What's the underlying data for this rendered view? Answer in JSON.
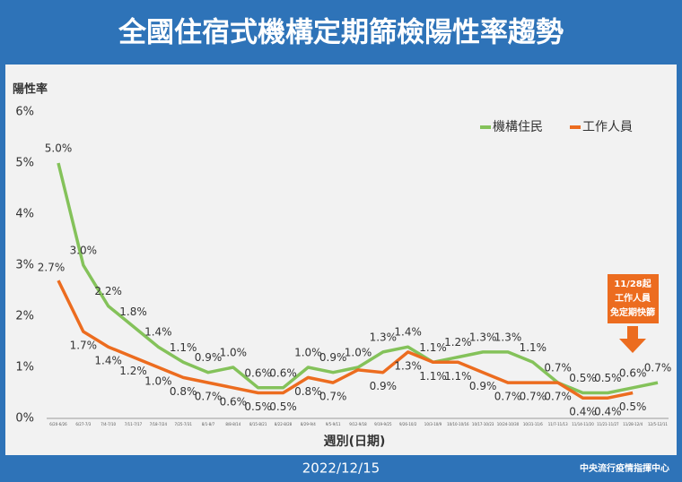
{
  "chart_data": {
    "type": "line",
    "title": "全國住宿式機構定期篩檢陽性率趨勢",
    "y_label": "陽性率",
    "x_label": "週別(日期)",
    "date": "2022/12/15",
    "source": "中央流行疫情指揮中心",
    "annotation": [
      "11/28起",
      "工作人員",
      "免定期快篩"
    ],
    "categories": [
      "6/20-6/26",
      "6/27-7/3",
      "7/4-7/10",
      "7/11-7/17",
      "7/18-7/24",
      "7/25-7/31",
      "8/1-8/7",
      "8/8-8/14",
      "8/15-8/21",
      "8/22-8/28",
      "8/29-9/4",
      "9/5-9/11",
      "9/12-9/18",
      "9/19-9/25",
      "9/26-10/2",
      "10/3-10/9",
      "10/10-10/16",
      "10/17-10/23",
      "10/24-10/30",
      "10/31-11/6",
      "11/7-11/13",
      "11/14-11/20",
      "11/21-11/27",
      "11/28-12/4",
      "12/5-12/11"
    ],
    "series": [
      {
        "name": "機構住民",
        "color": "#84c25a",
        "values": [
          5.0,
          3.0,
          2.2,
          1.8,
          1.4,
          1.1,
          0.9,
          1.0,
          0.6,
          0.6,
          1.0,
          0.9,
          1.0,
          1.3,
          1.4,
          1.1,
          1.2,
          1.3,
          1.3,
          1.1,
          0.7,
          0.5,
          0.5,
          0.6,
          0.7
        ],
        "value_labels": [
          "5.0%",
          "3.0%",
          "2.2%",
          "1.8%",
          "1.4%",
          "1.1%",
          "0.9%",
          "1.0%",
          "0.6%",
          "0.6%",
          "1.0%",
          "0.9%",
          "1.0%",
          "1.3%",
          "1.4%",
          "1.1%",
          "1.2%",
          "1.3%",
          "1.3%",
          "1.1%",
          "0.7%",
          "0.5%",
          "0.5%",
          "0.6%",
          "0.7%"
        ]
      },
      {
        "name": "工作人員",
        "color": "#ec6c1f",
        "values": [
          2.7,
          1.7,
          1.4,
          1.2,
          1.0,
          0.8,
          0.7,
          0.6,
          0.5,
          0.5,
          0.8,
          0.7,
          0.95,
          0.9,
          1.3,
          1.1,
          1.1,
          0.9,
          0.7,
          0.7,
          0.7,
          0.4,
          0.4,
          0.5,
          null
        ],
        "value_labels": [
          "2.7%",
          "1.7%",
          "1.4%",
          "1.2%",
          "1.0%",
          "0.8%",
          "0.7%",
          "0.6%",
          "0.5%",
          "0.5%",
          "0.8%",
          "0.7%",
          null,
          "0.9%",
          "1.3%",
          "1.1%",
          "1.1%",
          "0.9%",
          "0.7%",
          "0.7%",
          "0.7%",
          "0.4%",
          "0.4%",
          "0.5%",
          null
        ]
      }
    ],
    "ylim": [
      0,
      6
    ],
    "yticks": [
      {
        "value": 0,
        "label": "0%"
      },
      {
        "value": 1,
        "label": "1%"
      },
      {
        "value": 2,
        "label": "2%"
      },
      {
        "value": 3,
        "label": "3%"
      },
      {
        "value": 4,
        "label": "4%"
      },
      {
        "value": 5,
        "label": "5%"
      },
      {
        "value": 6,
        "label": "6%"
      }
    ],
    "legend": "top-right"
  }
}
